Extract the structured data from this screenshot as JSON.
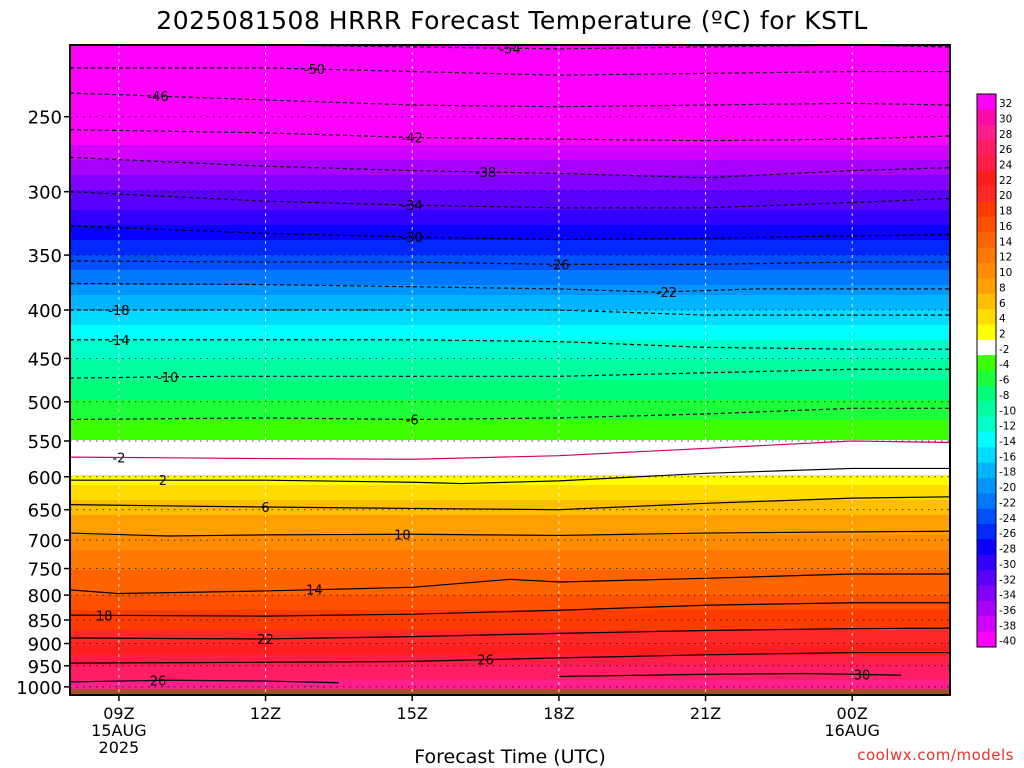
{
  "title": "2025081508 HRRR Forecast Temperature (ºC) for KSTL",
  "credit": "coolwx.com/models",
  "chart_data": {
    "type": "heatmap",
    "title": "2025081508 HRRR Forecast Temperature (ºC) for KSTL",
    "xlabel": "Forecast Time (UTC)",
    "ylabel": "",
    "x_range_hours": [
      8,
      26
    ],
    "y_scale": "log",
    "y_range_hpa": [
      1020,
      210
    ],
    "x_ticks": [
      {
        "hour": 9,
        "label": "09Z",
        "sub1": "15AUG",
        "sub2": "2025"
      },
      {
        "hour": 12,
        "label": "12Z",
        "sub1": "",
        "sub2": ""
      },
      {
        "hour": 15,
        "label": "15Z",
        "sub1": "",
        "sub2": ""
      },
      {
        "hour": 18,
        "label": "18Z",
        "sub1": "",
        "sub2": ""
      },
      {
        "hour": 21,
        "label": "21Z",
        "sub1": "",
        "sub2": ""
      },
      {
        "hour": 24,
        "label": "00Z",
        "sub1": "16AUG",
        "sub2": ""
      }
    ],
    "y_ticks": [
      250,
      300,
      350,
      400,
      450,
      500,
      550,
      600,
      650,
      700,
      750,
      800,
      850,
      900,
      950,
      1000
    ],
    "colorbar_labels": [
      "32",
      "30",
      "28",
      "26",
      "24",
      "22",
      "20",
      "18",
      "16",
      "14",
      "12",
      "10",
      "8",
      "6",
      "4",
      "2",
      "-2",
      "-4",
      "-6",
      "-8",
      "-10",
      "-12",
      "-14",
      "-16",
      "-18",
      "-20",
      "-22",
      "-24",
      "-26",
      "-28",
      "-30",
      "-32",
      "-34",
      "-36",
      "-38",
      "-40"
    ],
    "colorbar_colors": [
      "#ff00ff",
      "#ff0aa8",
      "#ff1e8c",
      "#ff1e64",
      "#ff1e46",
      "#ff1e1e",
      "#ff2828",
      "#ff3c00",
      "#ff5000",
      "#ff6400",
      "#ff7800",
      "#ff8c00",
      "#ffa000",
      "#ffbe00",
      "#ffdc00",
      "#ffff00",
      "#ffffff",
      "#3cff00",
      "#1eff3c",
      "#00ff78",
      "#00ffa0",
      "#00ffc8",
      "#00ffff",
      "#00dcff",
      "#00b4ff",
      "#0096ff",
      "#0078ff",
      "#0050ff",
      "#0028ff",
      "#0a00ff",
      "#3200ff",
      "#5a00ff",
      "#8200ff",
      "#aa00ff",
      "#d200ff",
      "#ff00ff"
    ],
    "ground_color": "#a0522d",
    "temperature_profile": [
      {
        "p": 1000,
        "t": 28
      },
      {
        "p": 950,
        "t": 25
      },
      {
        "p": 900,
        "t": 21
      },
      {
        "p": 850,
        "t": 18
      },
      {
        "p": 800,
        "t": 15
      },
      {
        "p": 750,
        "t": 13
      },
      {
        "p": 700,
        "t": 10
      },
      {
        "p": 650,
        "t": 6
      },
      {
        "p": 600,
        "t": 2
      },
      {
        "p": 550,
        "t": -3
      },
      {
        "p": 500,
        "t": -7
      },
      {
        "p": 450,
        "t": -11
      },
      {
        "p": 400,
        "t": -17
      },
      {
        "p": 350,
        "t": -25
      },
      {
        "p": 300,
        "t": -33
      },
      {
        "p": 250,
        "t": -43
      },
      {
        "p": 210,
        "t": -54
      }
    ],
    "contours": [
      {
        "value": "26",
        "dashed": false,
        "points": [
          [
            8,
            988
          ],
          [
            10,
            984
          ],
          [
            12,
            986
          ],
          [
            13.5,
            990
          ]
        ],
        "label_hour": 9.8
      },
      {
        "value": "30",
        "dashed": false,
        "points": [
          [
            18,
            975
          ],
          [
            21,
            970
          ],
          [
            23,
            968
          ],
          [
            25,
            972
          ]
        ],
        "label_hour": 24.2
      },
      {
        "value": "26",
        "dashed": false,
        "points": [
          [
            8,
            944
          ],
          [
            12,
            942
          ],
          [
            15,
            940
          ],
          [
            18,
            932
          ],
          [
            21,
            925
          ],
          [
            24,
            920
          ],
          [
            26,
            920
          ]
        ],
        "label_hour": 16.5
      },
      {
        "value": "22",
        "dashed": false,
        "points": [
          [
            8,
            888
          ],
          [
            12,
            890
          ],
          [
            15,
            885
          ],
          [
            18,
            878
          ],
          [
            21,
            872
          ],
          [
            24,
            868
          ],
          [
            26,
            867
          ]
        ],
        "label_hour": 12.0
      },
      {
        "value": "18",
        "dashed": false,
        "points": [
          [
            8,
            840
          ],
          [
            12,
            842
          ],
          [
            15,
            838
          ],
          [
            18,
            830
          ],
          [
            21,
            820
          ],
          [
            24,
            815
          ],
          [
            26,
            815
          ]
        ],
        "label_hour": 8.7
      },
      {
        "value": "14",
        "dashed": false,
        "points": [
          [
            8,
            790
          ],
          [
            9,
            797
          ],
          [
            12,
            792
          ],
          [
            15,
            785
          ],
          [
            17,
            770
          ],
          [
            18,
            775
          ],
          [
            21,
            768
          ],
          [
            24,
            760
          ],
          [
            26,
            760
          ]
        ],
        "label_hour": 13.0
      },
      {
        "value": "10",
        "dashed": false,
        "points": [
          [
            8,
            688
          ],
          [
            10,
            693
          ],
          [
            12,
            691
          ],
          [
            15,
            690
          ],
          [
            18,
            692
          ],
          [
            21,
            688
          ],
          [
            24,
            686
          ],
          [
            26,
            685
          ]
        ],
        "label_hour": 14.8
      },
      {
        "value": "6",
        "dashed": false,
        "points": [
          [
            8,
            642
          ],
          [
            11,
            645
          ],
          [
            15,
            648
          ],
          [
            18,
            650
          ],
          [
            21,
            640
          ],
          [
            24,
            632
          ],
          [
            26,
            630
          ]
        ],
        "label_hour": 12.0
      },
      {
        "value": "2",
        "dashed": false,
        "points": [
          [
            8,
            605
          ],
          [
            12,
            605
          ],
          [
            15,
            608
          ],
          [
            16,
            610
          ],
          [
            18,
            606
          ],
          [
            21,
            595
          ],
          [
            24,
            588
          ],
          [
            26,
            588
          ]
        ],
        "label_hour": 9.9
      },
      {
        "value": "-2",
        "dashed": false,
        "points": [
          [
            8,
            572
          ],
          [
            12,
            574
          ],
          [
            15,
            575
          ],
          [
            18,
            570
          ],
          [
            21,
            560
          ],
          [
            24,
            550
          ],
          [
            26,
            552
          ]
        ],
        "label_hour": 9.0
      },
      {
        "value": "-6",
        "dashed": true,
        "points": [
          [
            8,
            522
          ],
          [
            12,
            520
          ],
          [
            15,
            522
          ],
          [
            18,
            520
          ],
          [
            21,
            515
          ],
          [
            24,
            508
          ],
          [
            26,
            508
          ]
        ],
        "label_hour": 15.0
      },
      {
        "value": "-10",
        "dashed": true,
        "points": [
          [
            8,
            472
          ],
          [
            11,
            470
          ],
          [
            15,
            470
          ],
          [
            18,
            470
          ],
          [
            21,
            466
          ],
          [
            24,
            462
          ],
          [
            26,
            462
          ]
        ],
        "label_hour": 10.0
      },
      {
        "value": "-14",
        "dashed": true,
        "points": [
          [
            8,
            430
          ],
          [
            12,
            430
          ],
          [
            15,
            430
          ],
          [
            18,
            432
          ],
          [
            21,
            438
          ],
          [
            24,
            440
          ],
          [
            26,
            440
          ]
        ],
        "label_hour": 9.0
      },
      {
        "value": "-18",
        "dashed": true,
        "points": [
          [
            8,
            400
          ],
          [
            12,
            400
          ],
          [
            15,
            400
          ],
          [
            18,
            400
          ],
          [
            21,
            405
          ],
          [
            24,
            405
          ],
          [
            26,
            405
          ]
        ],
        "label_hour": 9.0
      },
      {
        "value": "-22",
        "dashed": true,
        "points": [
          [
            8,
            375
          ],
          [
            12,
            376
          ],
          [
            15,
            378
          ],
          [
            18,
            380
          ],
          [
            20,
            383
          ],
          [
            22,
            380
          ],
          [
            26,
            380
          ]
        ],
        "label_hour": 20.2
      },
      {
        "value": "-26",
        "dashed": true,
        "points": [
          [
            8,
            355
          ],
          [
            12,
            356
          ],
          [
            15,
            356
          ],
          [
            18,
            358
          ],
          [
            21,
            358
          ],
          [
            24,
            356
          ],
          [
            26,
            356
          ]
        ],
        "label_hour": 18.0
      },
      {
        "value": "-30",
        "dashed": true,
        "points": [
          [
            8,
            326
          ],
          [
            12,
            332
          ],
          [
            15,
            335
          ],
          [
            18,
            337
          ],
          [
            21,
            336
          ],
          [
            24,
            334
          ],
          [
            26,
            333
          ]
        ],
        "label_hour": 15.0
      },
      {
        "value": "-34",
        "dashed": true,
        "points": [
          [
            8,
            300
          ],
          [
            12,
            307
          ],
          [
            15,
            310
          ],
          [
            18,
            312
          ],
          [
            21,
            312
          ],
          [
            24,
            308
          ],
          [
            26,
            305
          ]
        ],
        "label_hour": 15.0
      },
      {
        "value": "-38",
        "dashed": true,
        "points": [
          [
            8,
            276
          ],
          [
            12,
            282
          ],
          [
            15,
            285
          ],
          [
            18,
            287
          ],
          [
            21,
            290
          ],
          [
            24,
            285
          ],
          [
            26,
            283
          ]
        ],
        "label_hour": 16.5
      },
      {
        "value": "-42",
        "dashed": true,
        "points": [
          [
            8,
            258
          ],
          [
            12,
            260
          ],
          [
            15,
            263
          ],
          [
            18,
            264
          ],
          [
            21,
            265
          ],
          [
            24,
            264
          ],
          [
            26,
            262
          ]
        ],
        "label_hour": 15.0
      },
      {
        "value": "-46",
        "dashed": true,
        "points": [
          [
            8,
            236
          ],
          [
            10,
            238
          ],
          [
            12,
            240
          ],
          [
            15,
            243
          ],
          [
            18,
            244
          ],
          [
            21,
            243
          ],
          [
            24,
            242
          ],
          [
            26,
            243
          ]
        ],
        "label_hour": 9.8
      },
      {
        "value": "-50",
        "dashed": true,
        "points": [
          [
            8,
            222
          ],
          [
            12,
            222
          ],
          [
            15,
            224
          ],
          [
            18,
            226
          ],
          [
            21,
            225
          ],
          [
            24,
            224
          ],
          [
            26,
            224
          ]
        ],
        "label_hour": 13.0
      },
      {
        "value": "-54",
        "dashed": true,
        "points": [
          [
            8,
            210
          ],
          [
            12,
            210
          ],
          [
            15,
            211
          ],
          [
            18,
            212
          ],
          [
            21,
            211
          ],
          [
            24,
            210
          ],
          [
            26,
            211
          ]
        ],
        "label_hour": 17.0
      }
    ]
  }
}
